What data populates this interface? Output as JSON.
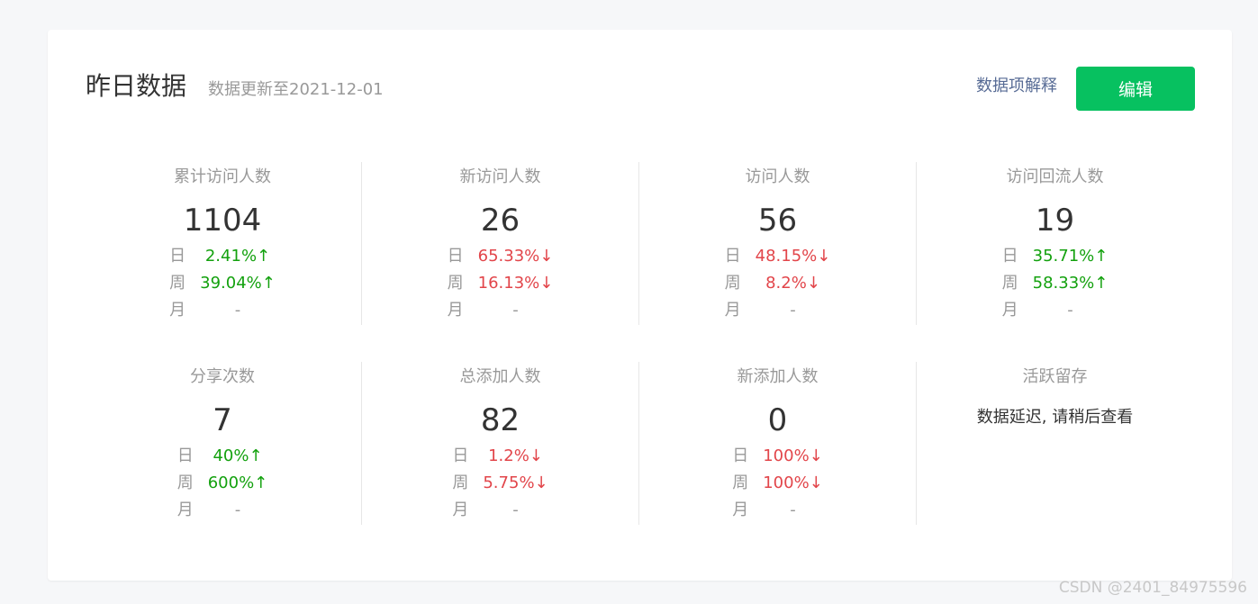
{
  "header": {
    "title": "昨日数据",
    "update_text": "数据更新至2021-12-01",
    "explain_link": "数据项解释",
    "edit_button": "编辑"
  },
  "labels": {
    "day": "日",
    "week": "周",
    "month": "月"
  },
  "metrics": [
    {
      "label": "累计访问人数",
      "value": "1104",
      "day": "2.41%↑",
      "week": "39.04%↑",
      "month": "-"
    },
    {
      "label": "新访问人数",
      "value": "26",
      "day": "65.33%↓",
      "week": "16.13%↓",
      "month": "-"
    },
    {
      "label": "访问人数",
      "value": "56",
      "day": "48.15%↓",
      "week": "8.2%↓",
      "month": "-"
    },
    {
      "label": "访问回流人数",
      "value": "19",
      "day": "35.71%↑",
      "week": "58.33%↑",
      "month": "-"
    },
    {
      "label": "分享次数",
      "value": "7",
      "day": "40%↑",
      "week": "600%↑",
      "month": "-"
    },
    {
      "label": "总添加人数",
      "value": "82",
      "day": "1.2%↓",
      "week": "5.75%↓",
      "month": "-"
    },
    {
      "label": "新添加人数",
      "value": "0",
      "day": "100%↓",
      "week": "100%↓",
      "month": "-"
    }
  ],
  "active_retention": {
    "label": "活跃留存",
    "notice": "数据延迟, 请稍后查看"
  },
  "colors": {
    "up": "#13a10e",
    "down": "#e2454a",
    "accent": "#07c160",
    "link": "#576b95"
  },
  "watermark": "CSDN @2401_84975596"
}
